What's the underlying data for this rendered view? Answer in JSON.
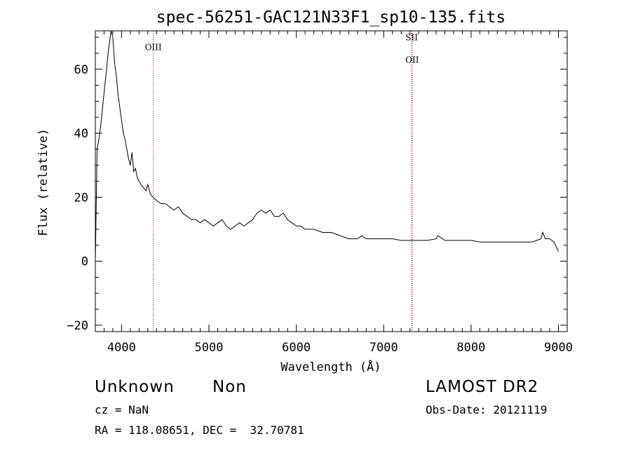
{
  "chart_data": {
    "type": "line",
    "title": "spec-56251-GAC121N33F1_sp10-135.fits",
    "xlabel": "Wavelength (Å)",
    "ylabel": "Flux (relative)",
    "xlim": [
      3700,
      9100
    ],
    "ylim": [
      -22,
      72
    ],
    "x_ticks": [
      4000,
      5000,
      6000,
      7000,
      8000,
      9000
    ],
    "y_ticks": [
      -20,
      0,
      20,
      40,
      60
    ],
    "grid": false,
    "series": [
      {
        "x": [
          3700,
          3720,
          3740,
          3760,
          3790,
          3820,
          3850,
          3880,
          3900,
          3920,
          3940,
          3960,
          3980,
          4000,
          4020,
          4040,
          4060,
          4080,
          4100,
          4120,
          4140,
          4160,
          4180,
          4200,
          4220,
          4250,
          4280,
          4300,
          4330,
          4360,
          4400,
          4450,
          4500,
          4550,
          4600,
          4650,
          4700,
          4750,
          4800,
          4850,
          4900,
          4950,
          5000,
          5050,
          5100,
          5150,
          5200,
          5250,
          5300,
          5350,
          5400,
          5450,
          5500,
          5550,
          5600,
          5650,
          5700,
          5750,
          5800,
          5850,
          5900,
          5950,
          6000,
          6050,
          6100,
          6200,
          6300,
          6400,
          6500,
          6600,
          6700,
          6750,
          6800,
          6900,
          7000,
          7100,
          7200,
          7300,
          7400,
          7500,
          7600,
          7620,
          7700,
          7800,
          7900,
          8000,
          8100,
          8200,
          8300,
          8400,
          8500,
          8600,
          8700,
          8750,
          8800,
          8820,
          8850,
          8900,
          8950,
          9000
        ],
        "y": [
          0,
          35,
          38,
          42,
          50,
          58,
          66,
          72,
          70,
          62,
          58,
          52,
          48,
          44,
          40,
          38,
          35,
          32,
          30,
          34,
          28,
          29,
          26,
          25,
          24,
          23,
          22,
          24,
          21,
          20,
          19,
          18,
          18,
          17,
          16,
          17,
          15,
          14,
          13,
          13,
          12,
          13,
          12,
          11,
          12,
          13,
          11,
          10,
          11,
          12,
          11,
          12,
          13,
          15,
          16,
          15,
          16,
          14,
          14,
          15,
          13,
          12,
          11,
          11,
          10,
          10,
          9,
          9,
          8,
          7,
          7,
          8,
          7,
          7,
          7,
          7,
          6.5,
          6.5,
          6.5,
          6.5,
          7,
          8,
          6.5,
          6.5,
          6.5,
          6.5,
          6,
          6,
          6,
          6,
          6,
          6,
          6,
          6.5,
          7,
          9,
          7,
          7,
          6,
          3
        ]
      }
    ],
    "lines": [
      {
        "label": "OIII",
        "x": 4363,
        "label_y": 66
      },
      {
        "label": "OII",
        "x": 7325,
        "label_y": 62
      },
      {
        "label": "SII",
        "x": 7320,
        "label_y": 69
      }
    ]
  },
  "info": {
    "object_class": "Unknown",
    "object_subclass": "Non",
    "survey": "LAMOST DR2",
    "cz": "cz = NaN",
    "obs_date": "Obs-Date: 20121119",
    "coords": "RA = 118.08651, DEC =  32.70781"
  }
}
